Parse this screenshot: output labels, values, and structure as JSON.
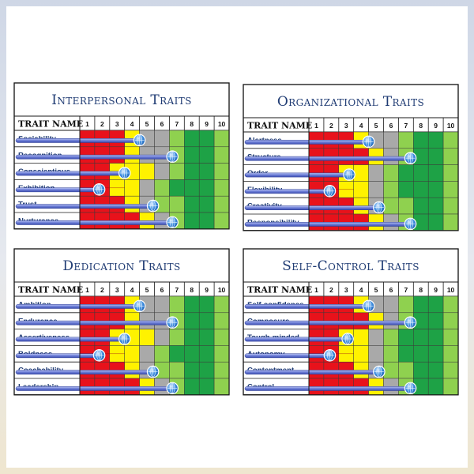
{
  "chart_data": [
    {
      "type": "table",
      "title": "Interpersonal Traits",
      "column_header": "TRAIT NAME",
      "scale": [
        "1",
        "2",
        "3",
        "4",
        "5",
        "6",
        "7",
        "8",
        "9",
        "10"
      ],
      "traits": [
        {
          "name": "Sociability",
          "score": 4.0,
          "colors": [
            "R",
            "R",
            "R",
            "Y",
            "G",
            "G",
            "L",
            "D",
            "D",
            "L"
          ]
        },
        {
          "name": "Recognition",
          "score": 6.2,
          "colors": [
            "R",
            "R",
            "R",
            "Y",
            "G",
            "G",
            "L",
            "D",
            "D",
            "L"
          ]
        },
        {
          "name": "Conscientious",
          "score": 3.0,
          "colors": [
            "R",
            "R",
            "Y",
            "Y",
            "Y",
            "G",
            "L",
            "D",
            "D",
            "L"
          ]
        },
        {
          "name": "Exhibition",
          "score": 1.3,
          "colors": [
            "R",
            "R",
            "Y",
            "Y",
            "G",
            "L",
            "D",
            "D",
            "D",
            "L"
          ]
        },
        {
          "name": "Trust",
          "score": 4.9,
          "colors": [
            "R",
            "R",
            "R",
            "Y",
            "G",
            "L",
            "L",
            "D",
            "D",
            "L"
          ]
        },
        {
          "name": "Nurturance",
          "score": 6.2,
          "colors": [
            "R",
            "R",
            "R",
            "R",
            "Y",
            "G",
            "L",
            "D",
            "D",
            "L"
          ]
        }
      ]
    },
    {
      "type": "table",
      "title": "Organizational Traits",
      "column_header": "TRAIT NAME",
      "scale": [
        "1",
        "2",
        "3",
        "4",
        "5",
        "6",
        "7",
        "8",
        "9",
        "10"
      ],
      "traits": [
        {
          "name": "Alertness",
          "score": 4.0,
          "colors": [
            "R",
            "R",
            "R",
            "Y",
            "G",
            "G",
            "L",
            "D",
            "D",
            "L"
          ]
        },
        {
          "name": "Structure",
          "score": 6.8,
          "colors": [
            "R",
            "R",
            "R",
            "R",
            "Y",
            "G",
            "L",
            "D",
            "D",
            "L"
          ]
        },
        {
          "name": "Order",
          "score": 2.7,
          "colors": [
            "R",
            "R",
            "Y",
            "Y",
            "G",
            "L",
            "D",
            "D",
            "D",
            "L"
          ]
        },
        {
          "name": "Flexibility",
          "score": 1.4,
          "colors": [
            "R",
            "R",
            "Y",
            "Y",
            "G",
            "L",
            "D",
            "D",
            "D",
            "L"
          ]
        },
        {
          "name": "Creativity",
          "score": 4.7,
          "colors": [
            "R",
            "R",
            "R",
            "Y",
            "G",
            "L",
            "L",
            "D",
            "D",
            "L"
          ]
        },
        {
          "name": "Responsibility",
          "score": 6.8,
          "colors": [
            "R",
            "R",
            "R",
            "R",
            "Y",
            "G",
            "L",
            "D",
            "D",
            "L"
          ]
        }
      ]
    },
    {
      "type": "table",
      "title": "Dedication  Traits",
      "column_header": "TRAIT NAME",
      "scale": [
        "1",
        "2",
        "3",
        "4",
        "5",
        "6",
        "7",
        "8",
        "9",
        "10"
      ],
      "traits": [
        {
          "name": "Ambition",
          "score": 4.0,
          "colors": [
            "R",
            "R",
            "R",
            "Y",
            "G",
            "G",
            "L",
            "D",
            "D",
            "L"
          ]
        },
        {
          "name": "Endurance",
          "score": 6.2,
          "colors": [
            "R",
            "R",
            "R",
            "Y",
            "G",
            "G",
            "L",
            "D",
            "D",
            "L"
          ]
        },
        {
          "name": "Assertiveness",
          "score": 3.0,
          "colors": [
            "R",
            "R",
            "Y",
            "Y",
            "Y",
            "G",
            "L",
            "D",
            "D",
            "L"
          ]
        },
        {
          "name": "Boldness",
          "score": 1.3,
          "colors": [
            "R",
            "R",
            "Y",
            "Y",
            "G",
            "L",
            "D",
            "D",
            "D",
            "L"
          ]
        },
        {
          "name": "Coachability",
          "score": 4.9,
          "colors": [
            "R",
            "R",
            "R",
            "Y",
            "G",
            "L",
            "L",
            "D",
            "D",
            "L"
          ]
        },
        {
          "name": "Leadership",
          "score": 6.2,
          "colors": [
            "R",
            "R",
            "R",
            "R",
            "Y",
            "G",
            "L",
            "D",
            "D",
            "L"
          ]
        }
      ]
    },
    {
      "type": "table",
      "title": "Self-Control Traits",
      "column_header": "TRAIT NAME",
      "scale": [
        "1",
        "2",
        "3",
        "4",
        "5",
        "6",
        "7",
        "8",
        "9",
        "10"
      ],
      "traits": [
        {
          "name": "Self-confidence",
          "score": 4.0,
          "colors": [
            "R",
            "R",
            "R",
            "Y",
            "G",
            "G",
            "L",
            "D",
            "D",
            "L"
          ]
        },
        {
          "name": "Composure",
          "score": 6.8,
          "colors": [
            "R",
            "R",
            "R",
            "R",
            "Y",
            "G",
            "L",
            "D",
            "D",
            "L"
          ]
        },
        {
          "name": "Tough-minded",
          "score": 2.6,
          "colors": [
            "R",
            "R",
            "Y",
            "Y",
            "G",
            "L",
            "D",
            "D",
            "D",
            "L"
          ]
        },
        {
          "name": "Autonomy",
          "score": 1.4,
          "colors": [
            "R",
            "R",
            "Y",
            "Y",
            "G",
            "L",
            "D",
            "D",
            "D",
            "L"
          ]
        },
        {
          "name": "Contentment",
          "score": 4.7,
          "colors": [
            "R",
            "R",
            "R",
            "Y",
            "G",
            "L",
            "L",
            "D",
            "D",
            "L"
          ]
        },
        {
          "name": "Control",
          "score": 6.8,
          "colors": [
            "R",
            "R",
            "R",
            "R",
            "Y",
            "G",
            "L",
            "D",
            "D",
            "L"
          ]
        }
      ]
    }
  ],
  "palette": {
    "R": "#e8121b",
    "Y": "#fff200",
    "G": "#a9a9a9",
    "L": "#8fd14f",
    "D": "#1ea246",
    "header_text": "#1f3b73",
    "trait_text": "#1f3b73",
    "bar": "#6b7cd6",
    "knob": "#3f8fe0"
  }
}
